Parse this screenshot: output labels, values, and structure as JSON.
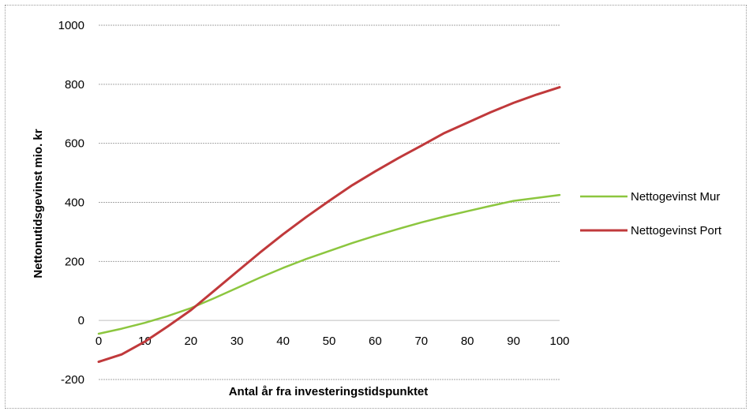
{
  "chart_data": {
    "type": "line",
    "title": "",
    "xlabel": "Antal år fra investeringstidspunktet",
    "ylabel": "Nettonutidsgevinst mio. kr",
    "xlim": [
      0,
      100
    ],
    "ylim": [
      -200,
      1000
    ],
    "x_ticks": [
      0,
      10,
      20,
      30,
      40,
      50,
      60,
      70,
      80,
      90,
      100
    ],
    "y_ticks": [
      -200,
      0,
      200,
      400,
      600,
      800,
      1000
    ],
    "grid": true,
    "legend_position": "right",
    "x": [
      0,
      5,
      10,
      15,
      20,
      25,
      30,
      35,
      40,
      45,
      50,
      55,
      60,
      65,
      70,
      75,
      80,
      85,
      90,
      95,
      100
    ],
    "series": [
      {
        "name": "Nettogevinst Mur",
        "color": "#8cc63f",
        "values": [
          -45,
          -28,
          -8,
          15,
          42,
          75,
          110,
          145,
          178,
          208,
          235,
          262,
          287,
          310,
          332,
          352,
          370,
          388,
          405,
          415,
          425
        ]
      },
      {
        "name": "Nettogevinst Port",
        "color": "#c0393b",
        "values": [
          -140,
          -115,
          -72,
          -20,
          35,
          100,
          165,
          230,
          292,
          350,
          405,
          458,
          505,
          550,
          592,
          635,
          670,
          705,
          737,
          765,
          790
        ]
      }
    ]
  }
}
